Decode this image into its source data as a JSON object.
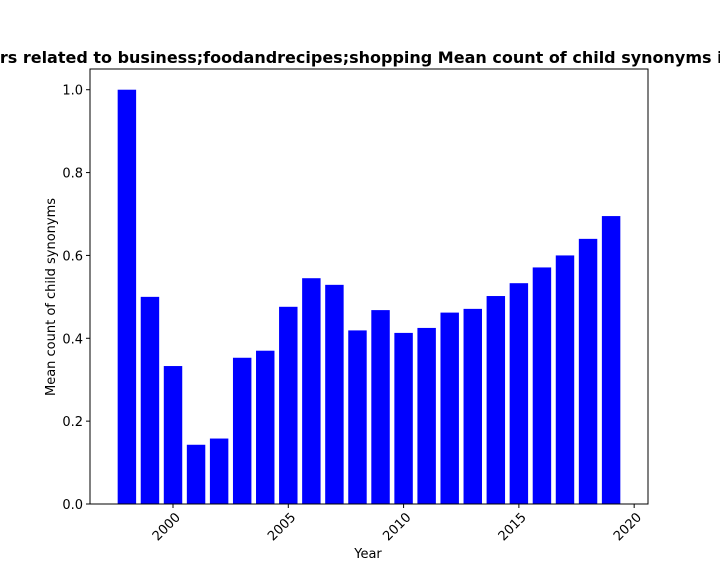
{
  "chart_data": {
    "type": "bar",
    "title": "ers related to business;foodandrecipes;shopping Mean count of child synonyms in p",
    "xlabel": "Year",
    "ylabel": "Mean count of child synonyms",
    "x": [
      1998,
      1999,
      2000,
      2001,
      2002,
      2003,
      2004,
      2005,
      2006,
      2007,
      2008,
      2009,
      2010,
      2011,
      2012,
      2013,
      2014,
      2015,
      2016,
      2017,
      2018,
      2019
    ],
    "values": [
      1.0,
      0.5,
      0.333,
      0.143,
      0.158,
      0.353,
      0.37,
      0.476,
      0.545,
      0.529,
      0.419,
      0.468,
      0.413,
      0.425,
      0.462,
      0.471,
      0.502,
      0.533,
      0.571,
      0.6,
      0.64,
      0.695
    ],
    "xlim": [
      1996.4,
      2020.6
    ],
    "ylim": [
      0,
      1.05
    ],
    "xticks": [
      2000,
      2005,
      2010,
      2015,
      2020
    ],
    "xtick_labels": [
      "2000",
      "2005",
      "2010",
      "2015",
      "2020"
    ],
    "yticks": [
      0.0,
      0.2,
      0.4,
      0.6,
      0.8,
      1.0
    ],
    "ytick_labels": [
      "0.0",
      "0.2",
      "0.4",
      "0.6",
      "0.8",
      "1.0"
    ],
    "bar_color": "#0000ff",
    "grid": false,
    "legend": "none"
  }
}
